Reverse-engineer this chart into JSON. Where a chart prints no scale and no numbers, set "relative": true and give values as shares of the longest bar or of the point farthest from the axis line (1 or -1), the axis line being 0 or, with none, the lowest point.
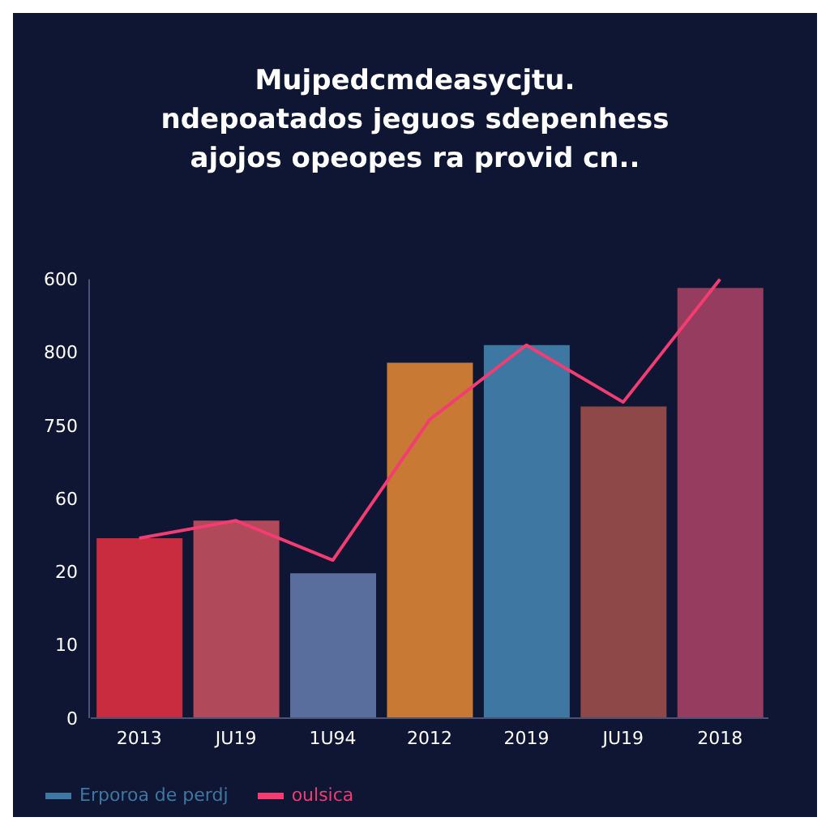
{
  "chart_data": {
    "type": "bar",
    "title": "Mujpedcmdeasycjtu.\nndepoatados jeguos sdepenhess\najojos opeopes ra provid cn..",
    "categories": [
      "2013",
      "JU19",
      "1U94",
      "2012",
      "2019",
      "JU19",
      "2018"
    ],
    "series": [
      {
        "name": "Erporoa de perdj",
        "color": "#3f77a3",
        "colors": [
          "#c92c3e",
          "#b0495a",
          "#5a6e9e",
          "#c87a35",
          "#3f77a3",
          "#8e4848",
          "#963c5e"
        ],
        "values": [
          0.41,
          0.45,
          0.33,
          0.81,
          0.85,
          0.71,
          0.98
        ]
      },
      {
        "type": "line",
        "name": "oulsica",
        "color": "#f23c72",
        "values": [
          0.41,
          0.45,
          0.36,
          0.68,
          0.85,
          0.72,
          1
        ]
      }
    ],
    "relative": true,
    "annotations": [
      "0",
      "10",
      "20",
      "60",
      "750",
      "800",
      "600"
    ],
    "legend": "bottom left",
    "marker": "none"
  }
}
